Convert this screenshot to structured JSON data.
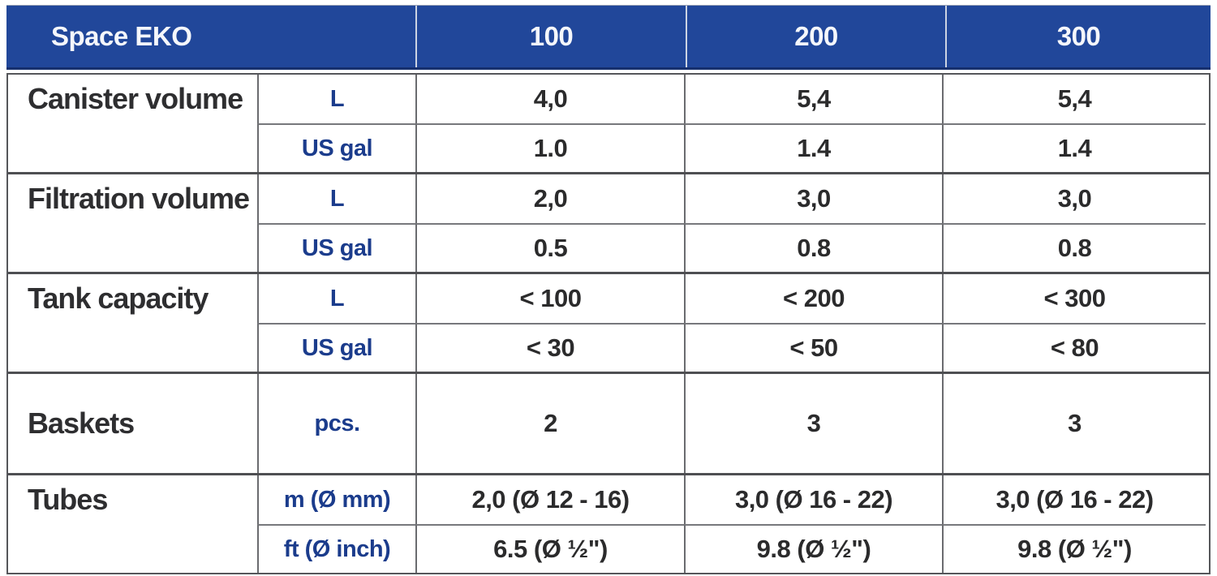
{
  "table": {
    "header": {
      "title": "Space EKO",
      "columns": [
        "100",
        "200",
        "300"
      ]
    },
    "groups": [
      {
        "label": "Canister volume",
        "rows": [
          {
            "unit": "L",
            "values": [
              "4,0",
              "5,4",
              "5,4"
            ]
          },
          {
            "unit": "US gal",
            "values": [
              "1.0",
              "1.4",
              "1.4"
            ]
          }
        ]
      },
      {
        "label": "Filtration volume",
        "rows": [
          {
            "unit": "L",
            "values": [
              "2,0",
              "3,0",
              "3,0"
            ]
          },
          {
            "unit": "US gal",
            "values": [
              "0.5",
              "0.8",
              "0.8"
            ]
          }
        ]
      },
      {
        "label": "Tank capacity",
        "rows": [
          {
            "unit": "L",
            "values": [
              "< 100",
              "< 200",
              "< 300"
            ]
          },
          {
            "unit": "US gal",
            "values": [
              "< 30",
              "< 50",
              "< 80"
            ]
          }
        ]
      },
      {
        "label": "Baskets",
        "rows": [
          {
            "unit": "pcs.",
            "values": [
              "2",
              "3",
              "3"
            ]
          }
        ]
      },
      {
        "label": "Tubes",
        "rows": [
          {
            "unit": "m (Ø mm)",
            "values": [
              "2,0 (Ø 12 - 16)",
              "3,0 (Ø 16 - 22)",
              "3,0 (Ø 16 - 22)"
            ]
          },
          {
            "unit": "ft (Ø inch)",
            "values": [
              "6.5 (Ø ½\")",
              "9.8 (Ø ½\")",
              "9.8 (Ø ½\")"
            ]
          }
        ]
      }
    ],
    "colors": {
      "header_bg": "#21479a",
      "header_text": "#f5f7fb",
      "unit_text": "#1b3c8c",
      "value_text": "#2b2b2c",
      "grid_border": "#6a6b6f",
      "group_border": "#4e4f52"
    }
  }
}
